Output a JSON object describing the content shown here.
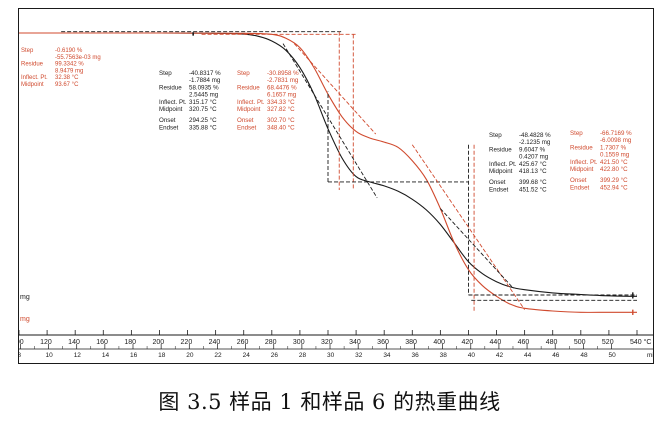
{
  "chart_data": {
    "type": "line",
    "title": "",
    "xlabel": "°C",
    "x2label": "min",
    "ylabel": "mg",
    "xlim": [
      100,
      540
    ],
    "x_ticks": [
      100,
      120,
      140,
      160,
      180,
      200,
      220,
      240,
      260,
      280,
      300,
      320,
      340,
      360,
      380,
      400,
      420,
      440,
      460,
      480,
      500,
      520,
      540
    ],
    "x_tick_labels": [
      "100",
      "120",
      "140",
      "160",
      "180",
      "200",
      "220",
      "240",
      "260",
      "280",
      "300",
      "320",
      "340",
      "360",
      "380",
      "400",
      "420",
      "440",
      "460",
      "480",
      "500",
      "520",
      "540 °C"
    ],
    "min_ticks": [
      8,
      10,
      12,
      14,
      16,
      18,
      20,
      22,
      24,
      26,
      28,
      30,
      32,
      34,
      36,
      38,
      40,
      42,
      44,
      46,
      48,
      50
    ],
    "min_tick_labels": [
      "8",
      "10",
      "12",
      "14",
      "16",
      "18",
      "20",
      "22",
      "24",
      "26",
      "28",
      "30",
      "32",
      "34",
      "36",
      "38",
      "40",
      "42",
      "44",
      "46",
      "48",
      "50",
      "min"
    ],
    "series": [
      {
        "name": "样品 1",
        "color": "#1a1a1a",
        "x": [
          100,
          200,
          240,
          260,
          270,
          280,
          290,
          300,
          310,
          320,
          330,
          340,
          350,
          360,
          370,
          380,
          390,
          400,
          410,
          420,
          430,
          440,
          450,
          460,
          480,
          500,
          520,
          540
        ],
        "y": [
          100,
          100,
          99.9,
          99.6,
          98.8,
          97,
          93.5,
          87,
          77,
          64,
          53,
          46,
          44,
          42.5,
          40.5,
          37.5,
          33.5,
          28,
          21,
          14,
          9.5,
          6.5,
          4.5,
          3.5,
          2.3,
          1.7,
          1.2,
          1
        ]
      },
      {
        "name": "样品 6",
        "color": "#d04a2e",
        "x": [
          100,
          200,
          260,
          280,
          290,
          300,
          310,
          320,
          330,
          340,
          350,
          360,
          370,
          380,
          390,
          400,
          410,
          420,
          430,
          440,
          450,
          460,
          480,
          500,
          520,
          540
        ],
        "y": [
          100,
          100,
          99.9,
          99.5,
          98,
          94.5,
          87,
          77,
          68.5,
          63,
          60.5,
          59,
          57,
          52,
          45,
          34,
          21,
          11,
          5,
          1,
          -2,
          -3.5,
          -4.5,
          -5,
          -5,
          -5
        ]
      }
    ],
    "annotations": {
      "step0": [
        {
          "text": "Step",
          "color": "#d04a2e"
        },
        {
          "text": "-0.6190 %",
          "color": "#d04a2e"
        },
        {
          "text": "-55.7563e-03 mg",
          "color": "#d04a2e"
        },
        {
          "text": "Residue",
          "color": "#d04a2e"
        },
        {
          "text": "99.3342 %",
          "color": "#d04a2e"
        },
        {
          "text": "8.9479 mg",
          "color": "#d04a2e"
        },
        {
          "text": "Inflect. Pt.",
          "color": "#d04a2e"
        },
        {
          "text": "32.38 °C",
          "color": "#d04a2e"
        },
        {
          "text": "Midpoint",
          "color": "#d04a2e"
        },
        {
          "text": "93.67 °C",
          "color": "#d04a2e"
        }
      ],
      "step1_black": [
        {
          "text": "Step"
        },
        {
          "text": "-40.8317 %"
        },
        {
          "text": "-1.7884 mg"
        },
        {
          "text": "Residue"
        },
        {
          "text": "58.0935 %"
        },
        {
          "text": "2.5445 mg"
        },
        {
          "text": "Inflect. Pt."
        },
        {
          "text": "315.17 °C"
        },
        {
          "text": "Midpoint"
        },
        {
          "text": "320.75 °C"
        },
        {
          "text": "Onset"
        },
        {
          "text": "294.25 °C"
        },
        {
          "text": "Endset"
        },
        {
          "text": "335.88 °C"
        }
      ],
      "step1_red": [
        {
          "text": "Step"
        },
        {
          "text": "-30.8958 %"
        },
        {
          "text": "-2.7831 mg"
        },
        {
          "text": "Residue"
        },
        {
          "text": "68.4476 %"
        },
        {
          "text": "6.1657 mg"
        },
        {
          "text": "Inflect. Pt."
        },
        {
          "text": "334.33 °C"
        },
        {
          "text": "Midpoint"
        },
        {
          "text": "327.82 °C"
        },
        {
          "text": "Onset"
        },
        {
          "text": "302.70 °C"
        },
        {
          "text": "Endset"
        },
        {
          "text": "348.40 °C"
        }
      ],
      "step2_black": [
        {
          "text": "Step"
        },
        {
          "text": "-48.4828 %"
        },
        {
          "text": "-2.1235 mg"
        },
        {
          "text": "Residue"
        },
        {
          "text": "9.6047 %"
        },
        {
          "text": "0.4207 mg"
        },
        {
          "text": "Inflect. Pt."
        },
        {
          "text": "425.67 °C"
        },
        {
          "text": "Midpoint"
        },
        {
          "text": "418.13 °C"
        },
        {
          "text": "Onset"
        },
        {
          "text": "399.68 °C"
        },
        {
          "text": "Endset"
        },
        {
          "text": "451.52 °C"
        }
      ],
      "step2_red": [
        {
          "text": "Step"
        },
        {
          "text": "-66.7169 %"
        },
        {
          "text": "-6.0098 mg"
        },
        {
          "text": "Residue"
        },
        {
          "text": "1.7307 %"
        },
        {
          "text": "0.1559 mg"
        },
        {
          "text": "Inflect. Pt."
        },
        {
          "text": "421.50 °C"
        },
        {
          "text": "Midpoint"
        },
        {
          "text": "422.80 °C"
        },
        {
          "text": "Onset"
        },
        {
          "text": "399.29 °C"
        },
        {
          "text": "Endset"
        },
        {
          "text": "452.94 °C"
        }
      ]
    },
    "left_axis_labels": [
      {
        "text": "mg",
        "color": "#1a1a1a"
      },
      {
        "text": "mg",
        "color": "#d04a2e"
      }
    ]
  },
  "caption": "图 3.5  样品 1 和样品 6 的热重曲线"
}
